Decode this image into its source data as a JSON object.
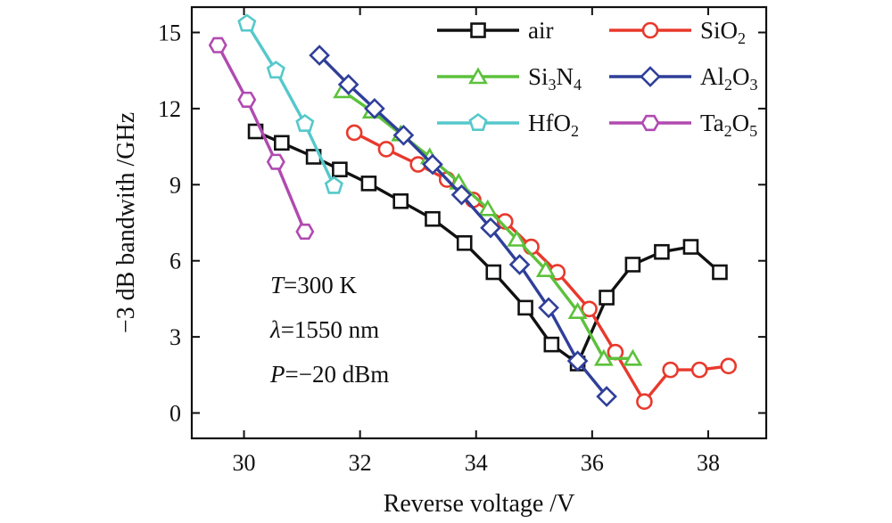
{
  "chart_data": {
    "type": "line",
    "xlabel": "Reverse voltage /V",
    "ylabel": "−3 dB bandwith /GHz",
    "xlim": [
      29.1,
      39.0
    ],
    "ylim": [
      -1.0,
      16.0
    ],
    "x_ticks": [
      30,
      32,
      34,
      36,
      38
    ],
    "y_ticks": [
      0,
      3,
      6,
      9,
      12,
      15
    ],
    "x_tick_labels": [
      "30",
      "32",
      "34",
      "36",
      "38"
    ],
    "y_tick_labels": [
      "0",
      "3",
      "6",
      "9",
      "12",
      "15"
    ],
    "grid": false,
    "legend_position": "top-right",
    "annotations": [
      {
        "var": "T",
        "text": "=300 K"
      },
      {
        "var": "λ",
        "text": "=1550 nm"
      },
      {
        "var": "P",
        "text": "=−20 dBm"
      }
    ],
    "series": [
      {
        "name": "air",
        "label_main": "air",
        "label_parts": [],
        "color": "#111111",
        "marker": "square",
        "x": [
          30.2,
          30.65,
          31.2,
          31.65,
          32.15,
          32.7,
          33.25,
          33.8,
          34.3,
          34.85,
          35.3,
          35.75,
          36.25,
          36.7,
          37.2,
          37.7,
          38.2
        ],
        "y": [
          11.1,
          10.65,
          10.1,
          9.6,
          9.05,
          8.35,
          7.65,
          6.7,
          5.55,
          4.15,
          2.7,
          1.95,
          4.55,
          5.85,
          6.35,
          6.55,
          5.55
        ]
      },
      {
        "name": "SiO2",
        "label_main": "SiO",
        "label_parts": [
          [
            "2",
            "sub"
          ]
        ],
        "color": "#e8392c",
        "marker": "circle",
        "x": [
          31.9,
          32.45,
          33.0,
          33.5,
          33.95,
          34.5,
          34.95,
          35.4,
          35.95,
          36.4,
          36.9,
          37.35,
          37.85,
          38.35
        ],
        "y": [
          11.05,
          10.4,
          9.8,
          9.2,
          8.4,
          7.55,
          6.55,
          5.55,
          4.1,
          2.4,
          0.45,
          1.7,
          1.7,
          1.85
        ]
      },
      {
        "name": "Si3N4",
        "label_main": "Si",
        "label_parts": [
          [
            "3",
            "sub"
          ],
          [
            "N",
            "main"
          ],
          [
            "4",
            "sub"
          ]
        ],
        "color": "#5cc13b",
        "marker": "triangle",
        "x": [
          31.7,
          32.2,
          32.7,
          33.2,
          33.7,
          34.2,
          34.7,
          35.2,
          35.75,
          36.2,
          36.7
        ],
        "y": [
          12.7,
          11.9,
          11.0,
          10.1,
          9.1,
          8.05,
          6.85,
          5.65,
          4.0,
          2.15,
          2.15
        ]
      },
      {
        "name": "Al2O3",
        "label_main": "Al",
        "label_parts": [
          [
            "2",
            "sub"
          ],
          [
            "O",
            "main"
          ],
          [
            "3",
            "sub"
          ]
        ],
        "color": "#2f3f99",
        "marker": "diamond",
        "x": [
          31.3,
          31.8,
          32.25,
          32.75,
          33.25,
          33.75,
          34.25,
          34.75,
          35.25,
          35.75,
          36.25
        ],
        "y": [
          14.1,
          12.95,
          12.0,
          10.95,
          9.8,
          8.6,
          7.3,
          5.85,
          4.15,
          2.05,
          0.65
        ]
      },
      {
        "name": "HfO2",
        "label_main": "HfO",
        "label_parts": [
          [
            "2",
            "sub"
          ]
        ],
        "color": "#55c8cb",
        "marker": "pentagon",
        "x": [
          30.05,
          30.55,
          31.05,
          31.55
        ],
        "y": [
          15.35,
          13.5,
          11.4,
          8.95
        ]
      },
      {
        "name": "Ta2O5",
        "label_main": "Ta",
        "label_parts": [
          [
            "2",
            "sub"
          ],
          [
            "O",
            "main"
          ],
          [
            "5",
            "sub"
          ]
        ],
        "color": "#b04ab0",
        "marker": "hexagon",
        "x": [
          29.55,
          30.05,
          30.55,
          31.05
        ],
        "y": [
          14.5,
          12.35,
          9.9,
          7.15
        ]
      }
    ]
  }
}
